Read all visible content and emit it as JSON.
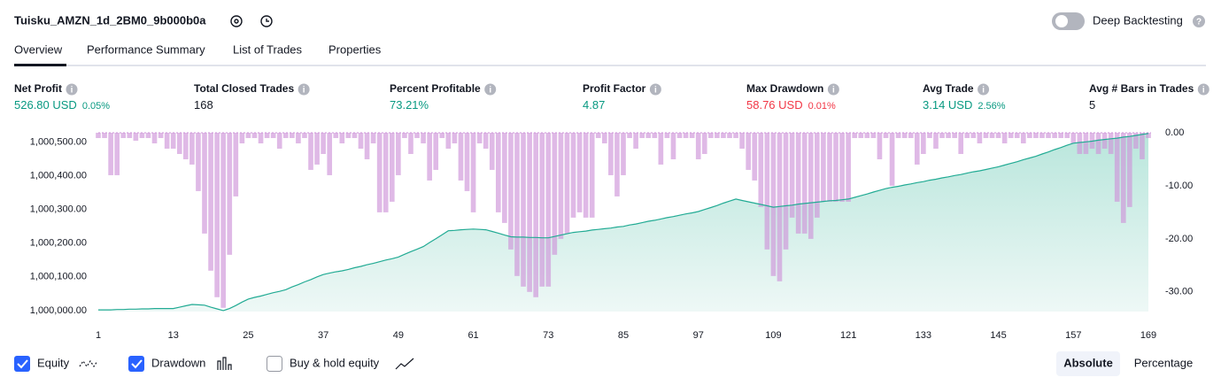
{
  "header": {
    "title": "Tuisku_AMZN_1d_2BM0_9b000b0a",
    "toggle_label": "Deep Backtesting"
  },
  "tabs": [
    "Overview",
    "Performance Summary",
    "List of Trades",
    "Properties"
  ],
  "metrics": [
    {
      "label": "Net Profit",
      "value": "526.80 USD",
      "pct": "0.05%"
    },
    {
      "label": "Total Closed Trades",
      "value": "168"
    },
    {
      "label": "Percent Profitable",
      "value": "73.21%"
    },
    {
      "label": "Profit Factor",
      "value": "4.87"
    },
    {
      "label": "Max Drawdown",
      "value": "58.76 USD",
      "pct": "0.01%"
    },
    {
      "label": "Avg Trade",
      "value": "3.14 USD",
      "pct": "2.56%"
    },
    {
      "label": "Avg # Bars in Trades",
      "value": "5"
    }
  ],
  "chart_data": {
    "type": "combo",
    "x": [
      1,
      2,
      3,
      4,
      5,
      6,
      7,
      8,
      9,
      10,
      11,
      12,
      13,
      14,
      15,
      16,
      17,
      18,
      19,
      20,
      21,
      22,
      23,
      24,
      25,
      26,
      27,
      28,
      29,
      30,
      31,
      32,
      33,
      34,
      35,
      36,
      37,
      38,
      39,
      40,
      41,
      42,
      43,
      44,
      45,
      46,
      47,
      48,
      49,
      50,
      51,
      52,
      53,
      54,
      55,
      56,
      57,
      58,
      59,
      60,
      61,
      62,
      63,
      64,
      65,
      66,
      67,
      68,
      69,
      70,
      71,
      72,
      73,
      74,
      75,
      76,
      77,
      78,
      79,
      80,
      81,
      82,
      83,
      84,
      85,
      86,
      87,
      88,
      89,
      90,
      91,
      92,
      93,
      94,
      95,
      96,
      97,
      98,
      99,
      100,
      101,
      102,
      103,
      104,
      105,
      106,
      107,
      108,
      109,
      110,
      111,
      112,
      113,
      114,
      115,
      116,
      117,
      118,
      119,
      120,
      121,
      122,
      123,
      124,
      125,
      126,
      127,
      128,
      129,
      130,
      131,
      132,
      133,
      134,
      135,
      136,
      137,
      138,
      139,
      140,
      141,
      142,
      143,
      144,
      145,
      146,
      147,
      148,
      149,
      150,
      151,
      152,
      153,
      154,
      155,
      156,
      157,
      158,
      159,
      160,
      161,
      162,
      163,
      164,
      165,
      166,
      167,
      168,
      169
    ],
    "series": [
      {
        "name": "Equity",
        "type": "line",
        "color": "#22ab94",
        "checked": true,
        "values": [
          1000002,
          1000002,
          1000002,
          1000003,
          1000003,
          1000004,
          1000004,
          1000005,
          1000005,
          1000006,
          1000006,
          1000006,
          1000006,
          1000010,
          1000014,
          1000018,
          1000017,
          1000016,
          1000010,
          1000005,
          1000000,
          1000006,
          1000015,
          1000025,
          1000034,
          1000039,
          1000043,
          1000048,
          1000053,
          1000057,
          1000062,
          1000070,
          1000077,
          1000085,
          1000092,
          1000100,
          1000107,
          1000111,
          1000115,
          1000118,
          1000122,
          1000127,
          1000131,
          1000136,
          1000140,
          1000145,
          1000150,
          1000154,
          1000159,
          1000167,
          1000175,
          1000182,
          1000190,
          1000202,
          1000213,
          1000225,
          1000237,
          1000238,
          1000240,
          1000241,
          1000242,
          1000241,
          1000240,
          1000235,
          1000230,
          1000224,
          1000219,
          1000218,
          1000218,
          1000217,
          1000217,
          1000216,
          1000216,
          1000220,
          1000224,
          1000228,
          1000232,
          1000234,
          1000236,
          1000239,
          1000241,
          1000243,
          1000245,
          1000248,
          1000250,
          1000254,
          1000257,
          1000261,
          1000265,
          1000268,
          1000272,
          1000276,
          1000279,
          1000283,
          1000287,
          1000290,
          1000294,
          1000300,
          1000306,
          1000312,
          1000319,
          1000325,
          1000331,
          1000327,
          1000323,
          1000319,
          1000315,
          1000311,
          1000307,
          1000309,
          1000311,
          1000313,
          1000316,
          1000318,
          1000320,
          1000322,
          1000324,
          1000326,
          1000327,
          1000329,
          1000331,
          1000336,
          1000341,
          1000346,
          1000352,
          1000357,
          1000362,
          1000366,
          1000369,
          1000373,
          1000376,
          1000380,
          1000383,
          1000387,
          1000390,
          1000394,
          1000397,
          1000401,
          1000404,
          1000408,
          1000412,
          1000415,
          1000419,
          1000423,
          1000427,
          1000432,
          1000437,
          1000442,
          1000448,
          1000453,
          1000458,
          1000465,
          1000471,
          1000478,
          1000484,
          1000491,
          1000497,
          1000499,
          1000501,
          1000503,
          1000506,
          1000508,
          1000510,
          1000512,
          1000515,
          1000517,
          1000520,
          1000523,
          1000526
        ]
      },
      {
        "name": "Drawdown",
        "type": "bar",
        "axis": "y2",
        "color": "#ce93d8",
        "checked": true,
        "values": [
          -1,
          -1,
          -8,
          -8,
          -1,
          -1,
          -1.5,
          -1,
          -1,
          -2,
          -1,
          -3,
          -3,
          -4,
          -5,
          -6,
          -11,
          -19,
          -26,
          -31,
          -33,
          -23,
          -12,
          -2,
          -1,
          -1,
          -2,
          -1,
          -1,
          -3,
          -1,
          -1,
          -2,
          -1,
          -7,
          -6,
          -4,
          -8,
          -1,
          -2,
          -1,
          -1,
          -3,
          -5,
          -2,
          -15,
          -15,
          -13,
          -8,
          -1,
          -4,
          -1,
          -2,
          -9,
          -7,
          -1,
          -3,
          -2,
          -9,
          -11,
          -15,
          -2,
          -3,
          -7,
          -15,
          -17,
          -22,
          -27,
          -29,
          -30,
          -31,
          -29,
          -29,
          -23,
          -20,
          -19,
          -16,
          -15,
          -16,
          -16,
          -1,
          -2,
          -8,
          -12,
          -8,
          -1,
          -3,
          -1,
          -1,
          -1,
          -6,
          -1,
          -5,
          -1,
          -1,
          -1,
          -5,
          -4,
          -1,
          -1,
          -1,
          -1,
          -1,
          -3,
          -7,
          -9,
          -14,
          -22,
          -27,
          -28,
          -22,
          -16,
          -19,
          -19,
          -20,
          -16,
          -13,
          -13,
          -13,
          -13,
          -13,
          -1,
          -1,
          -1,
          -1,
          -5,
          -1,
          -10,
          -1,
          -1,
          -1,
          -6,
          -4,
          -1,
          -3,
          -1,
          -1,
          -1,
          -4,
          -1,
          -1,
          -2,
          -1,
          -1,
          -1,
          -2,
          -1,
          -1,
          -2,
          -1,
          -1,
          -1,
          -1,
          -1,
          -1,
          -1,
          -2,
          -4,
          -4,
          -3,
          -4,
          -3,
          -4,
          -13,
          -17,
          -14,
          -3,
          -5,
          -1
        ]
      }
    ],
    "extra_legend": {
      "name": "Buy & hold equity",
      "checked": false
    },
    "xlim": [
      1,
      169
    ],
    "xticks": [
      1,
      13,
      25,
      37,
      49,
      61,
      73,
      85,
      97,
      109,
      121,
      133,
      145,
      157,
      169
    ],
    "ylim": [
      999997,
      1000528
    ],
    "yticks": [
      {
        "value": 1000000,
        "label": "1,000,000.00"
      },
      {
        "value": 1000100,
        "label": "1,000,100.00"
      },
      {
        "value": 1000200,
        "label": "1,000,200.00"
      },
      {
        "value": 1000300,
        "label": "1,000,300.00"
      },
      {
        "value": 1000400,
        "label": "1,000,400.00"
      },
      {
        "value": 1000500,
        "label": "1,000,500.00"
      }
    ],
    "y2lim": [
      -33.7,
      0
    ],
    "y2ticks": [
      {
        "value": 0,
        "label": "0.00"
      },
      {
        "value": -10,
        "label": "-10.00"
      },
      {
        "value": -20,
        "label": "-20.00"
      },
      {
        "value": -30,
        "label": "-30.00"
      }
    ]
  },
  "view_buttons": [
    "Absolute",
    "Percentage"
  ]
}
